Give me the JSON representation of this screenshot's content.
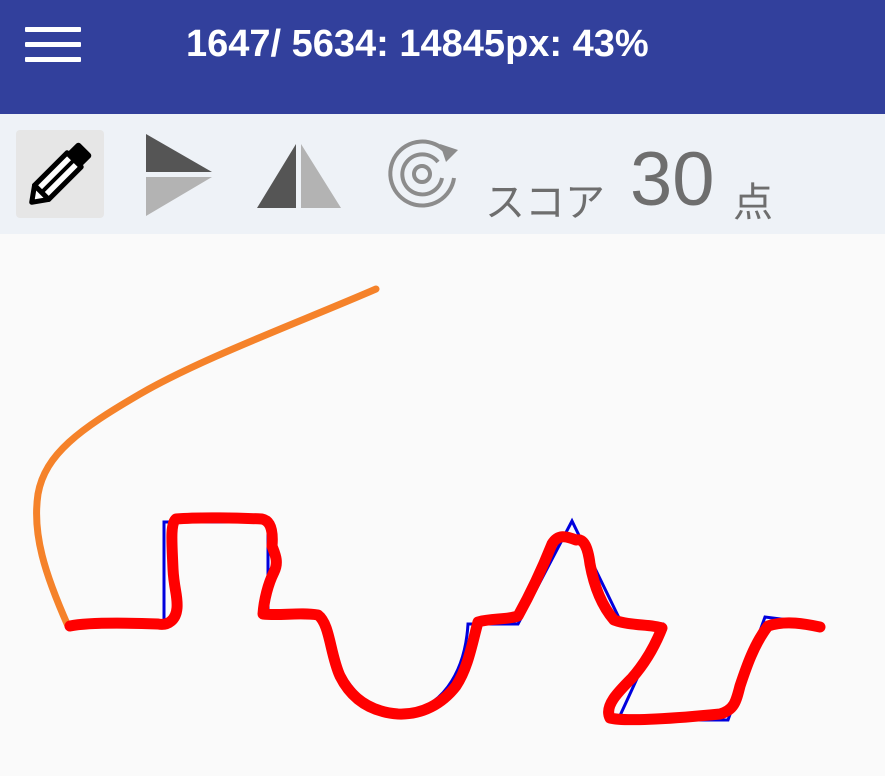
{
  "header": {
    "title": "1647/ 5634: 14845px: 43%",
    "background_color": "#32409c",
    "menu_icon": "hamburger-menu-icon"
  },
  "toolbar": {
    "tools": [
      {
        "icon": "pencil-icon",
        "active": true
      },
      {
        "icon": "play-split-icon",
        "active": false
      },
      {
        "icon": "mirror-triangle-icon",
        "active": false
      },
      {
        "icon": "rotate-icon",
        "active": false
      }
    ],
    "score_label": "スコア",
    "score_value": "30",
    "score_unit": "点"
  },
  "canvas": {
    "target_line_color": "#0000dd",
    "user_line_color": "#ff0000",
    "guide_line_color": "#f5822a"
  }
}
